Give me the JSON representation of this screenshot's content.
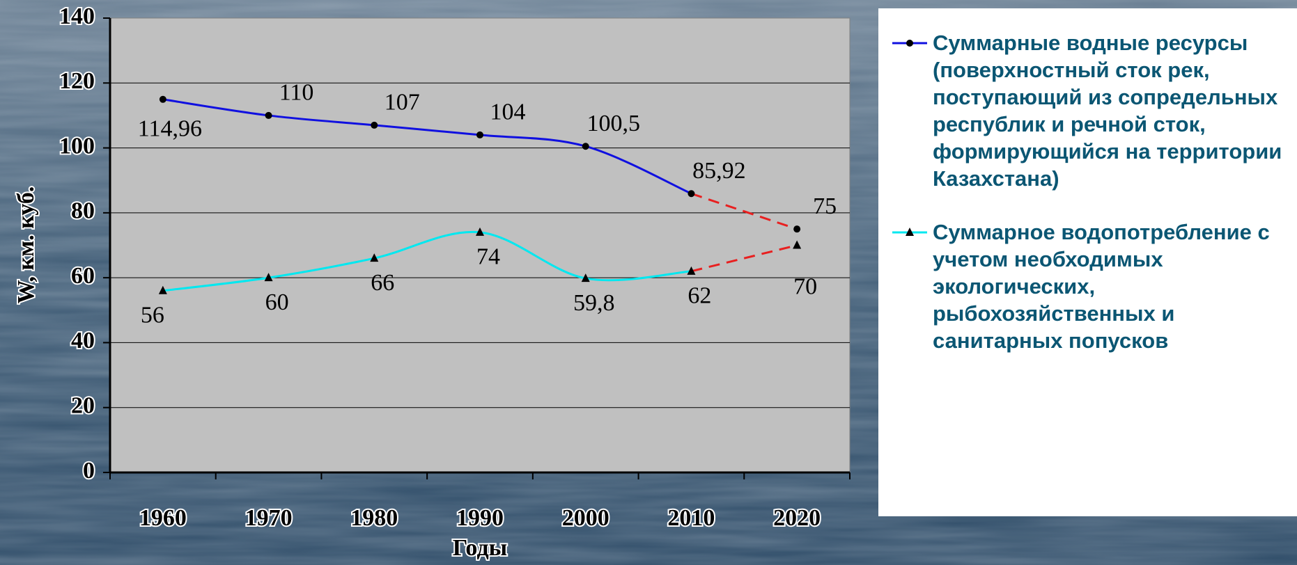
{
  "chart_data": {
    "type": "line",
    "x_label": "Годы",
    "y_label": "W, км. куб.",
    "categories": [
      "1960",
      "1970",
      "1980",
      "1990",
      "2000",
      "2010",
      "2020"
    ],
    "series": [
      {
        "name": "Суммарные водные ресурсы (поверхностный сток рек, поступающий из сопредельных республик и речной сток, формирующийся на территории Казахстана)",
        "color": "#1010e0",
        "marker": "circle",
        "values": [
          114.96,
          110,
          107,
          104,
          100.5,
          85.92,
          75
        ],
        "value_labels": [
          "114,96",
          "110",
          "107",
          "104",
          "100,5",
          "85,92",
          "75"
        ]
      },
      {
        "name": "Суммарное водопотребление с учетом необходимых экологических, рыбохозяйственных и санитарных попусков",
        "color": "#00e8f0",
        "marker": "triangle",
        "values": [
          56,
          60,
          66,
          74,
          59.8,
          62,
          70
        ],
        "value_labels": [
          "56",
          "60",
          "66",
          "74",
          "59,8",
          "62",
          "70"
        ]
      }
    ],
    "forecast_from": "2010",
    "forecast_color": "#e82020",
    "ylim": [
      0,
      140
    ],
    "yticks": [
      0,
      20,
      40,
      60,
      80,
      100,
      120,
      140
    ],
    "grid": true,
    "legend": "right"
  }
}
